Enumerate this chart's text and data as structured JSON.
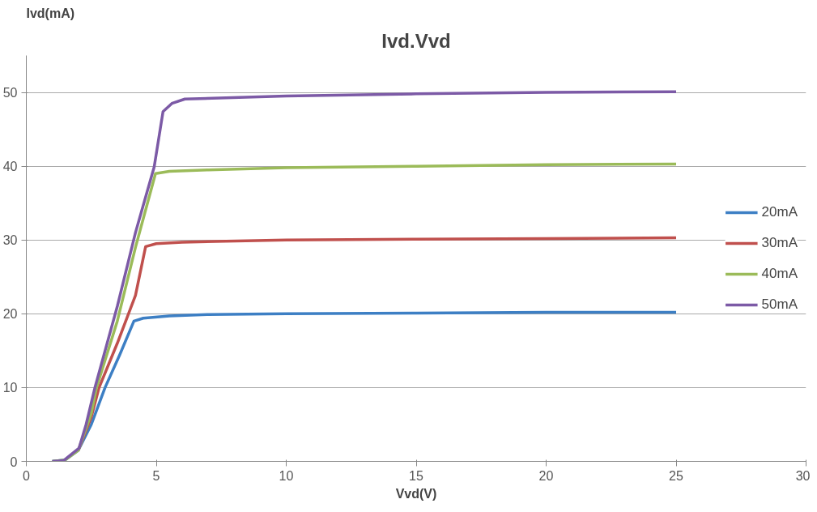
{
  "chart_data": {
    "type": "line",
    "title": "Ivd.Vvd",
    "xlabel": "Vvd(V)",
    "ylabel": "Ivd(mA)",
    "xlim": [
      0,
      30
    ],
    "xticks": [
      0,
      5,
      10,
      15,
      20,
      25,
      30
    ],
    "ylim": [
      0,
      55
    ],
    "yticks": [
      0,
      10,
      20,
      30,
      40,
      50
    ],
    "grid": "y",
    "legend": "right",
    "marker": "none",
    "line_style": "solid",
    "series": [
      {
        "name": "20mA",
        "color": "#3d7fc4",
        "x": [
          1.0,
          1.5,
          2.0,
          2.5,
          3.03,
          3.6,
          4.14,
          4.5,
          5.5,
          7,
          10,
          15,
          20,
          25
        ],
        "values": [
          0,
          0.2,
          1.5,
          5,
          10,
          14.5,
          19.0,
          19.4,
          19.7,
          19.9,
          20,
          20.1,
          20.2,
          20.2
        ]
      },
      {
        "name": "30mA",
        "color": "#c0504d",
        "x": [
          2.0,
          2.5,
          2.8,
          3.5,
          4.2,
          4.59,
          5,
          6,
          10,
          15,
          20,
          25
        ],
        "values": [
          1.5,
          6,
          10,
          16,
          22.5,
          29.1,
          29.5,
          29.7,
          30,
          30.1,
          30.2,
          30.3
        ]
      },
      {
        "name": "40mA",
        "color": "#9bbb59",
        "x": [
          1.0,
          1.5,
          2.0,
          2.5,
          2.7,
          3.5,
          4.2,
          4.97,
          5.5,
          7,
          10,
          15,
          20,
          25
        ],
        "values": [
          0,
          0.2,
          1.5,
          6.5,
          10,
          19,
          29,
          39.0,
          39.3,
          39.5,
          39.8,
          40,
          40.2,
          40.3
        ]
      },
      {
        "name": "50mA",
        "color": "#7c5aa6",
        "x": [
          1.0,
          1.43,
          2.03,
          2.3,
          2.64,
          3.5,
          4.2,
          4.92,
          5.26,
          5.6,
          6.1,
          10,
          15,
          20,
          25
        ],
        "values": [
          0,
          0.1,
          1.8,
          5,
          10,
          21,
          31,
          39.9,
          47.4,
          48.5,
          49.1,
          49.5,
          49.8,
          50,
          50.1
        ]
      }
    ]
  }
}
